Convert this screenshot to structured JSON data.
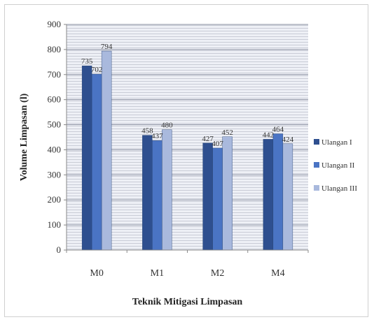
{
  "chart_data": {
    "type": "bar",
    "title": "",
    "xlabel": "Teknik Mitigasi Limpasan",
    "ylabel": "Volume Limpasan (l)",
    "ylim": [
      0,
      900
    ],
    "yticks": [
      0,
      100,
      200,
      300,
      400,
      500,
      600,
      700,
      800,
      900
    ],
    "categories": [
      "M0",
      "M1",
      "M2",
      "M4"
    ],
    "grid": true,
    "legend_position": "right",
    "series": [
      {
        "name": "Ulangan I",
        "color": "#2e4f8f",
        "values": [
          735,
          458,
          427,
          442
        ],
        "labels": [
          "735",
          "458",
          "427",
          "442"
        ]
      },
      {
        "name": "Ulangan II",
        "color": "#4a74c4",
        "values": [
          702,
          437,
          407,
          464
        ],
        "labels": [
          "702",
          "437",
          "407",
          "464"
        ]
      },
      {
        "name": "Ulangan III",
        "color": "#a9b9dd",
        "values": [
          794,
          480,
          452,
          424
        ],
        "labels": [
          "794",
          "480",
          "452",
          "424"
        ]
      }
    ]
  }
}
